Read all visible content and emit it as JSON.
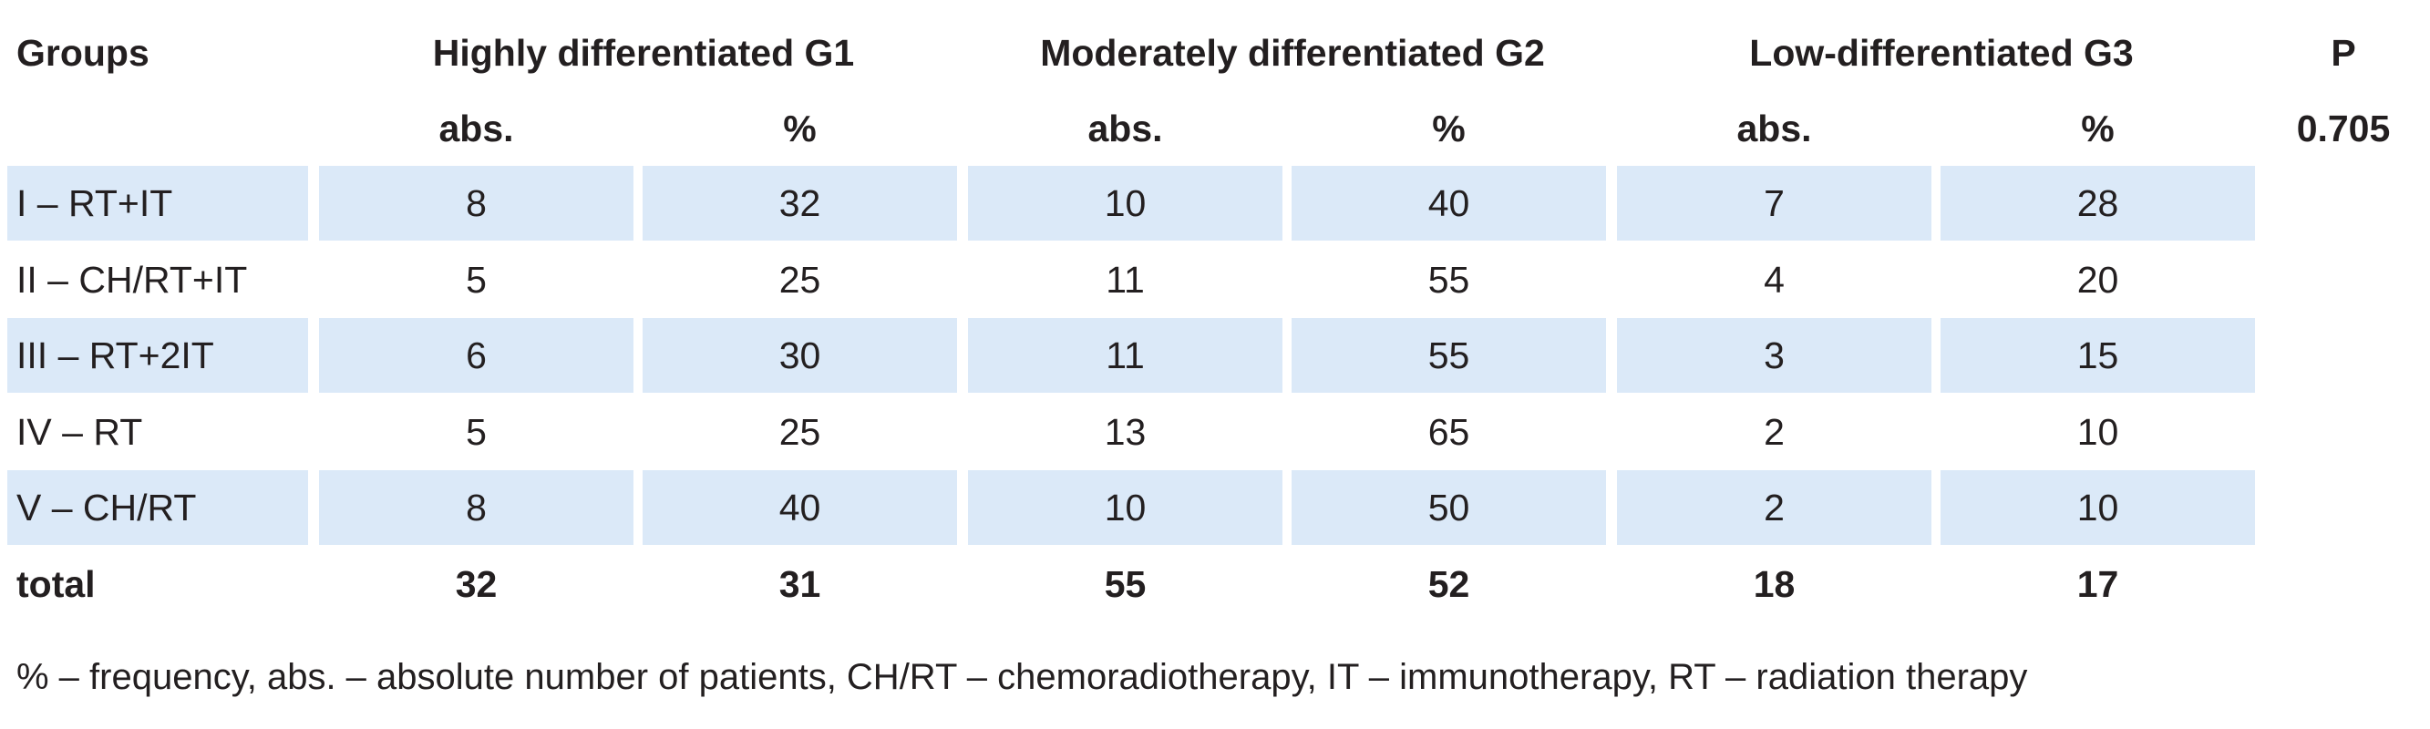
{
  "header": {
    "groups_label": "Groups",
    "g1_label": "Highly differentiated G1",
    "g2_label": "Moderately differentiated G2",
    "g3_label": "Low-differentiated G3",
    "p_label": "P"
  },
  "subheader": {
    "g1_abs": "abs.",
    "g1_pct": "%",
    "g2_abs": "abs.",
    "g2_pct": "%",
    "g3_abs": "abs.",
    "g3_pct": "%",
    "p_value": "0.705"
  },
  "rows": [
    {
      "group": "I – RT+IT",
      "g1_abs": "8",
      "g1_pct": "32",
      "g2_abs": "10",
      "g2_pct": "40",
      "g3_abs": "7",
      "g3_pct": "28"
    },
    {
      "group": "II – CH/RT+IT",
      "g1_abs": "5",
      "g1_pct": "25",
      "g2_abs": "11",
      "g2_pct": "55",
      "g3_abs": "4",
      "g3_pct": "20"
    },
    {
      "group": "III – RT+2IT",
      "g1_abs": "6",
      "g1_pct": "30",
      "g2_abs": "11",
      "g2_pct": "55",
      "g3_abs": "3",
      "g3_pct": "15"
    },
    {
      "group": "IV – RT",
      "g1_abs": "5",
      "g1_pct": "25",
      "g2_abs": "13",
      "g2_pct": "65",
      "g3_abs": "2",
      "g3_pct": "10"
    },
    {
      "group": "V – CH/RT",
      "g1_abs": "8",
      "g1_pct": "40",
      "g2_abs": "10",
      "g2_pct": "50",
      "g3_abs": "2",
      "g3_pct": "10"
    }
  ],
  "total": {
    "label": "total",
    "g1_abs": "32",
    "g1_pct": "31",
    "g2_abs": "55",
    "g2_pct": "52",
    "g3_abs": "18",
    "g3_pct": "17"
  },
  "footnote": "% – frequency, abs. – absolute number of patients, CH/RT – chemoradiotherapy, IT – immunotherapy, RT – radiation therapy",
  "colors": {
    "row_shading": "#dbe9f8",
    "text": "#231f20"
  }
}
